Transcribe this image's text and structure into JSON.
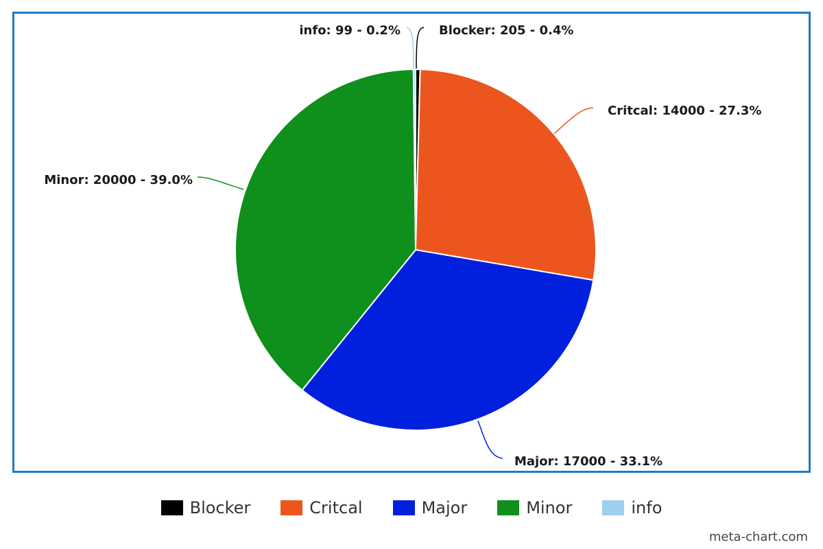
{
  "chart_data": {
    "type": "pie",
    "slices": [
      {
        "name": "Blocker",
        "value": 205,
        "percent": "0.4%",
        "color": "#000000",
        "label": "Blocker: 205 - 0.4%"
      },
      {
        "name": "Critcal",
        "value": 14000,
        "percent": "27.3%",
        "color": "#ec561e",
        "label": "Critcal: 14000 - 27.3%"
      },
      {
        "name": "Major",
        "value": 17000,
        "percent": "33.1%",
        "color": "#0020de",
        "label": "Major: 17000 - 33.1%"
      },
      {
        "name": "Minor",
        "value": 20000,
        "percent": "39.0%",
        "color": "#0f8f1c",
        "label": "Minor: 20000 - 39.0%"
      },
      {
        "name": "info",
        "value": 99,
        "percent": "0.2%",
        "color": "#9ccff0",
        "label": "info: 99 - 0.2%"
      }
    ],
    "legend_position": "bottom",
    "frame_color": "#1f7ac2"
  },
  "legend": {
    "items": [
      {
        "label": "Blocker",
        "color": "#000000"
      },
      {
        "label": "Critcal",
        "color": "#ec561e"
      },
      {
        "label": "Major",
        "color": "#0020de"
      },
      {
        "label": "Minor",
        "color": "#0f8f1c"
      },
      {
        "label": "info",
        "color": "#9ccff0"
      }
    ]
  },
  "credit": "meta-chart.com"
}
